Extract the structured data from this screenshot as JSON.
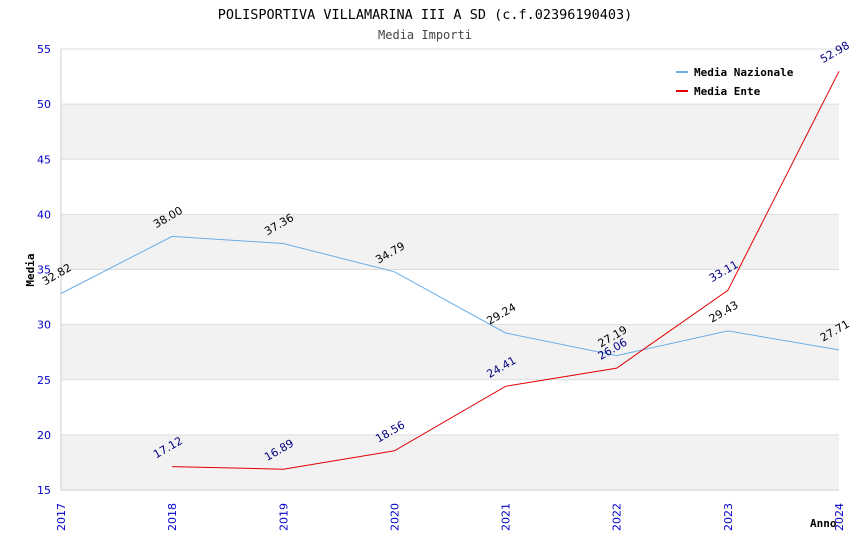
{
  "chart_data": {
    "type": "line",
    "title": "POLISPORTIVA VILLAMARINA III A SD (c.f.02396190403)",
    "subtitle": "Media Importi",
    "xlabel": "Anno",
    "ylabel": "Media",
    "x": [
      "2017",
      "2018",
      "2019",
      "2020",
      "2021",
      "2022",
      "2023",
      "2024"
    ],
    "ylim": [
      15,
      55
    ],
    "yticks": [
      "15",
      "20",
      "25",
      "30",
      "35",
      "40",
      "45",
      "50",
      "55"
    ],
    "grid": true,
    "legend_position": "top-right",
    "series": [
      {
        "name": "Media Nazionale",
        "color": "#6aaee8",
        "label_color": "#000000",
        "values": [
          32.82,
          38.0,
          37.36,
          34.79,
          29.24,
          27.19,
          29.43,
          27.71
        ],
        "labels": [
          "32.82",
          "38.00",
          "37.36",
          "34.79",
          "29.24",
          "27.19",
          "29.43",
          "27.71"
        ]
      },
      {
        "name": "Media Ente",
        "color": "#e00000",
        "label_color": "#000080",
        "values": [
          null,
          17.12,
          16.89,
          18.56,
          24.41,
          26.06,
          33.11,
          52.98
        ],
        "labels": [
          null,
          "17.12",
          "16.89",
          "18.56",
          "24.41",
          "26.06",
          "33.11",
          "52.98"
        ]
      }
    ],
    "colors": {
      "axis_tick": "#0000cc",
      "band": "#f2f2f2",
      "grid": "#dddddd"
    }
  }
}
